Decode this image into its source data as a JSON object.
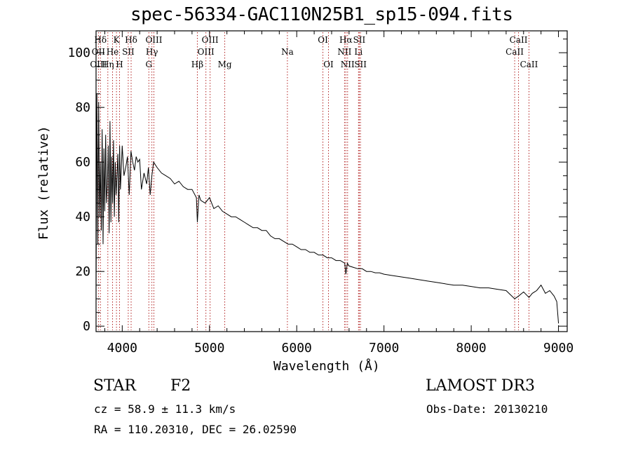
{
  "header": {
    "title": "spec-56334-GAC110N25B1_sp15-094.fits"
  },
  "object": {
    "class": "STAR",
    "subclass": "F2",
    "survey": "LAMOST DR3",
    "cz_text": "cz = 58.9 ± 11.3 km/s",
    "obs_date_text": "Obs-Date: 20130210",
    "radec_text": "RA = 110.20310, DEC =  26.02590"
  },
  "chart_data": {
    "type": "line",
    "title": "spec-56334-GAC110N25B1_sp15-094.fits",
    "xlabel": "Wavelength (Å)",
    "ylabel": "Flux (relative)",
    "xlim": [
      3700,
      9100
    ],
    "ylim": [
      -2,
      108
    ],
    "xticks": [
      4000,
      5000,
      6000,
      7000,
      8000,
      9000
    ],
    "yticks": [
      0,
      20,
      40,
      60,
      80,
      100
    ],
    "grid": false,
    "line_color": "#000000",
    "marker_color": "#b22222",
    "series": [
      {
        "name": "flux",
        "x": [
          3700,
          3710,
          3720,
          3730,
          3740,
          3750,
          3760,
          3770,
          3780,
          3790,
          3800,
          3810,
          3820,
          3830,
          3840,
          3850,
          3860,
          3870,
          3880,
          3890,
          3900,
          3910,
          3920,
          3930,
          3940,
          3950,
          3960,
          3970,
          3980,
          3990,
          4000,
          4020,
          4040,
          4060,
          4080,
          4100,
          4120,
          4140,
          4160,
          4180,
          4200,
          4220,
          4250,
          4280,
          4300,
          4320,
          4340,
          4360,
          4380,
          4400,
          4450,
          4500,
          4550,
          4600,
          4650,
          4700,
          4750,
          4800,
          4850,
          4861,
          4880,
          4900,
          4950,
          5000,
          5050,
          5100,
          5150,
          5200,
          5250,
          5300,
          5350,
          5400,
          5450,
          5500,
          5550,
          5600,
          5650,
          5700,
          5750,
          5800,
          5850,
          5900,
          5950,
          6000,
          6050,
          6100,
          6150,
          6200,
          6250,
          6300,
          6350,
          6400,
          6450,
          6500,
          6550,
          6563,
          6580,
          6600,
          6650,
          6700,
          6750,
          6800,
          6850,
          6900,
          6950,
          7000,
          7100,
          7200,
          7300,
          7400,
          7500,
          7600,
          7700,
          7800,
          7900,
          8000,
          8100,
          8200,
          8300,
          8400,
          8498,
          8542,
          8600,
          8662,
          8700,
          8750,
          8800,
          8850,
          8900,
          8950,
          8980,
          9000
        ],
        "values": [
          12,
          85,
          30,
          82,
          40,
          60,
          35,
          72,
          30,
          65,
          42,
          70,
          45,
          52,
          66,
          34,
          75,
          38,
          62,
          45,
          68,
          40,
          60,
          48,
          55,
          63,
          38,
          66,
          50,
          58,
          66,
          55,
          58,
          62,
          48,
          64,
          60,
          57,
          62,
          60,
          61,
          50,
          56,
          52,
          58,
          48,
          55,
          60,
          59,
          58,
          56,
          55,
          54,
          52,
          53,
          51,
          50,
          50,
          47,
          38,
          48,
          46,
          45,
          47,
          43,
          44,
          42,
          41,
          40,
          40,
          39,
          38,
          37,
          36,
          36,
          35,
          35,
          33,
          32,
          32,
          31,
          30,
          30,
          29,
          28,
          28,
          27,
          27,
          26,
          26,
          25,
          25,
          24,
          24,
          23,
          19,
          23,
          22,
          21.5,
          21,
          21,
          20,
          20,
          19.5,
          19.5,
          19,
          18.5,
          18,
          17.5,
          17,
          16.5,
          16,
          15.5,
          15,
          15,
          14.5,
          14,
          14,
          13.5,
          13,
          10,
          11,
          12.5,
          10.5,
          12,
          13,
          15,
          12,
          13,
          11,
          9,
          1
        ]
      }
    ],
    "markers": [
      {
        "label": "Hδ",
        "wl": 3750,
        "row": 1
      },
      {
        "label": "OII",
        "wl": 3727,
        "row": 2
      },
      {
        "label": "OIII",
        "wl": 3727,
        "row": 3
      },
      {
        "label": "K",
        "wl": 3934,
        "row": 1
      },
      {
        "label": "He",
        "wl": 3889,
        "row": 2
      },
      {
        "label": "Hη",
        "wl": 3835,
        "row": 3
      },
      {
        "label": "SII",
        "wl": 4069,
        "row": 2
      },
      {
        "label": "H",
        "wl": 3969,
        "row": 3
      },
      {
        "label": "Hδ",
        "wl": 4102,
        "row": 1
      },
      {
        "label": "OIII",
        "wl": 4363,
        "row": 1
      },
      {
        "label": "Hγ",
        "wl": 4340,
        "row": 2
      },
      {
        "label": "G",
        "wl": 4305,
        "row": 3
      },
      {
        "label": "Hβ",
        "wl": 4861,
        "row": 3
      },
      {
        "label": "OIII",
        "wl": 5007,
        "row": 1
      },
      {
        "label": "OIII",
        "wl": 4959,
        "row": 2
      },
      {
        "label": "Mg",
        "wl": 5175,
        "row": 3
      },
      {
        "label": "Na",
        "wl": 5893,
        "row": 2
      },
      {
        "label": "OI",
        "wl": 6300,
        "row": 1
      },
      {
        "label": "OI",
        "wl": 6364,
        "row": 3
      },
      {
        "label": "Hα",
        "wl": 6563,
        "row": 1
      },
      {
        "label": "NII",
        "wl": 6548,
        "row": 2
      },
      {
        "label": "NII",
        "wl": 6583,
        "row": 3
      },
      {
        "label": "SII",
        "wl": 6717,
        "row": 1
      },
      {
        "label": "Li",
        "wl": 6708,
        "row": 2
      },
      {
        "label": "SII",
        "wl": 6731,
        "row": 3
      },
      {
        "label": "CaII",
        "wl": 8542,
        "row": 1
      },
      {
        "label": "CaII",
        "wl": 8498,
        "row": 2
      },
      {
        "label": "CaII",
        "wl": 8662,
        "row": 3
      }
    ]
  }
}
